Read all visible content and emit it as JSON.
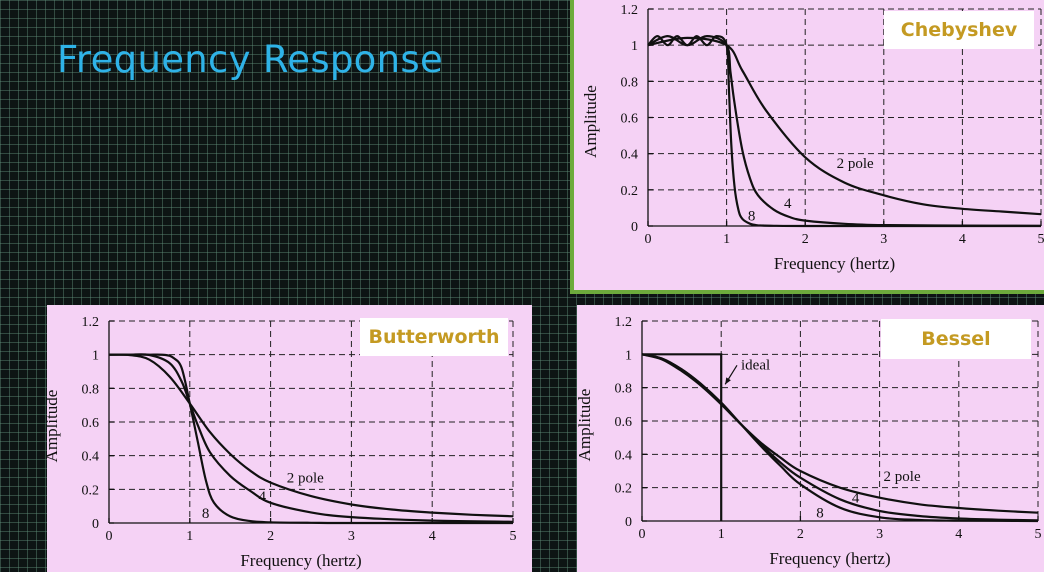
{
  "page": {
    "title": "Frequency Response"
  },
  "chart_data": [
    {
      "id": "chebyshev",
      "type": "line",
      "title": "Chebyshev",
      "xlabel": "Frequency (hertz)",
      "ylabel": "Amplitude",
      "xlim": [
        0,
        5
      ],
      "ylim": [
        0,
        1.2
      ],
      "xticks": [
        "0",
        "1",
        "2",
        "3",
        "4",
        "5"
      ],
      "yticks": [
        "0",
        "0.2",
        "0.4",
        "0.6",
        "0.8",
        "1",
        "1.2"
      ],
      "grid": true,
      "series": [
        {
          "name": "2 pole",
          "x": [
            0,
            0.5,
            1,
            1.2,
            1.5,
            2,
            2.5,
            3,
            3.5,
            4,
            4.5,
            5
          ],
          "y": [
            1,
            1.04,
            1,
            0.86,
            0.64,
            0.38,
            0.24,
            0.17,
            0.12,
            0.095,
            0.08,
            0.065
          ]
        },
        {
          "name": "4",
          "x": [
            0,
            0.25,
            0.5,
            0.75,
            1,
            1.05,
            1.1,
            1.2,
            1.3,
            1.4,
            1.6,
            1.8,
            2,
            2.5,
            3,
            4,
            5
          ],
          "y": [
            1,
            1.05,
            1,
            1.05,
            1,
            0.85,
            0.68,
            0.42,
            0.26,
            0.17,
            0.09,
            0.05,
            0.03,
            0.012,
            0.005,
            0.002,
            0.001
          ]
        },
        {
          "name": "8",
          "x": [
            0,
            0.12,
            0.25,
            0.37,
            0.5,
            0.62,
            0.75,
            0.87,
            1,
            1.03,
            1.06,
            1.1,
            1.15,
            1.2,
            1.3,
            1.4,
            1.6,
            2,
            3,
            5
          ],
          "y": [
            1,
            1.05,
            1,
            1.05,
            1,
            1.05,
            1,
            1.05,
            1,
            0.75,
            0.45,
            0.22,
            0.09,
            0.04,
            0.012,
            0.004,
            0.001,
            0,
            0,
            0
          ]
        }
      ],
      "annotations": [
        {
          "text": "2 pole",
          "x": 2.4,
          "y": 0.32
        },
        {
          "text": "4",
          "x": 1.73,
          "y": 0.1
        },
        {
          "text": "8",
          "x": 1.27,
          "y": 0.03
        }
      ]
    },
    {
      "id": "butterworth",
      "type": "line",
      "title": "Butterworth",
      "xlabel": "Frequency (hertz)",
      "ylabel": "Amplitude",
      "xlim": [
        0,
        5
      ],
      "ylim": [
        0,
        1.2
      ],
      "xticks": [
        "0",
        "1",
        "2",
        "3",
        "4",
        "5"
      ],
      "yticks": [
        "0",
        "0.2",
        "0.4",
        "0.6",
        "0.8",
        "1",
        "1.2"
      ],
      "grid": true,
      "series": [
        {
          "name": "2 pole",
          "x": [
            0,
            0.25,
            0.5,
            0.75,
            1,
            1.25,
            1.5,
            1.75,
            2,
            2.5,
            3,
            3.5,
            4,
            4.5,
            5
          ],
          "y": [
            1,
            0.998,
            0.97,
            0.87,
            0.71,
            0.54,
            0.41,
            0.31,
            0.24,
            0.16,
            0.11,
            0.08,
            0.062,
            0.049,
            0.04
          ]
        },
        {
          "name": "4",
          "x": [
            0,
            0.25,
            0.5,
            0.75,
            0.9,
            1,
            1.1,
            1.25,
            1.5,
            1.75,
            2,
            2.5,
            3,
            4,
            5
          ],
          "y": [
            1,
            1,
            0.998,
            0.95,
            0.84,
            0.71,
            0.58,
            0.42,
            0.28,
            0.19,
            0.12,
            0.063,
            0.035,
            0.014,
            0.007
          ]
        },
        {
          "name": "8",
          "x": [
            0,
            0.25,
            0.5,
            0.7,
            0.8,
            0.9,
            1,
            1.1,
            1.2,
            1.3,
            1.5,
            1.75,
            2,
            2.5,
            3,
            5
          ],
          "y": [
            1,
            1,
            1,
            0.998,
            0.98,
            0.92,
            0.71,
            0.48,
            0.25,
            0.12,
            0.039,
            0.011,
            0.004,
            0.001,
            0,
            0
          ]
        }
      ],
      "annotations": [
        {
          "text": "2 pole",
          "x": 2.2,
          "y": 0.24
        },
        {
          "text": "4",
          "x": 1.85,
          "y": 0.13
        },
        {
          "text": "8",
          "x": 1.15,
          "y": 0.03
        }
      ]
    },
    {
      "id": "bessel",
      "type": "line",
      "title": "Bessel",
      "xlabel": "Frequency (hertz)",
      "ylabel": "Amplitude",
      "xlim": [
        0,
        5
      ],
      "ylim": [
        0,
        1.2
      ],
      "xticks": [
        "0",
        "1",
        "2",
        "3",
        "4",
        "5"
      ],
      "yticks": [
        "0",
        "0.2",
        "0.4",
        "0.6",
        "0.8",
        "1",
        "1.2"
      ],
      "grid": true,
      "series": [
        {
          "name": "ideal",
          "x": [
            0,
            1,
            1
          ],
          "y": [
            1,
            1,
            0
          ]
        },
        {
          "name": "2 pole",
          "x": [
            0,
            0.25,
            0.5,
            0.75,
            1,
            1.25,
            1.5,
            1.75,
            2,
            2.5,
            3,
            3.5,
            4,
            4.5,
            5
          ],
          "y": [
            1,
            0.97,
            0.9,
            0.81,
            0.7,
            0.58,
            0.47,
            0.38,
            0.3,
            0.2,
            0.14,
            0.1,
            0.078,
            0.062,
            0.05
          ]
        },
        {
          "name": "4",
          "x": [
            0,
            0.25,
            0.5,
            0.75,
            1,
            1.25,
            1.5,
            1.75,
            2,
            2.5,
            3,
            3.5,
            4,
            4.5,
            5
          ],
          "y": [
            1,
            0.975,
            0.91,
            0.82,
            0.71,
            0.58,
            0.46,
            0.35,
            0.26,
            0.13,
            0.06,
            0.03,
            0.015,
            0.008,
            0.004
          ]
        },
        {
          "name": "8",
          "x": [
            0,
            0.25,
            0.5,
            0.75,
            1,
            1.25,
            1.5,
            1.75,
            2,
            2.5,
            3,
            3.5,
            4,
            4.5,
            5
          ],
          "y": [
            1,
            0.975,
            0.91,
            0.82,
            0.71,
            0.58,
            0.45,
            0.33,
            0.22,
            0.08,
            0.022,
            0.006,
            0.002,
            0.001,
            0
          ]
        }
      ],
      "annotations": [
        {
          "text": "ideal",
          "x": 1.25,
          "y": 0.91,
          "arrow_to": [
            1.05,
            0.82
          ]
        },
        {
          "text": "2 pole",
          "x": 3.05,
          "y": 0.24
        },
        {
          "text": "4",
          "x": 2.65,
          "y": 0.11
        },
        {
          "text": "8",
          "x": 2.2,
          "y": 0.02
        }
      ]
    }
  ]
}
